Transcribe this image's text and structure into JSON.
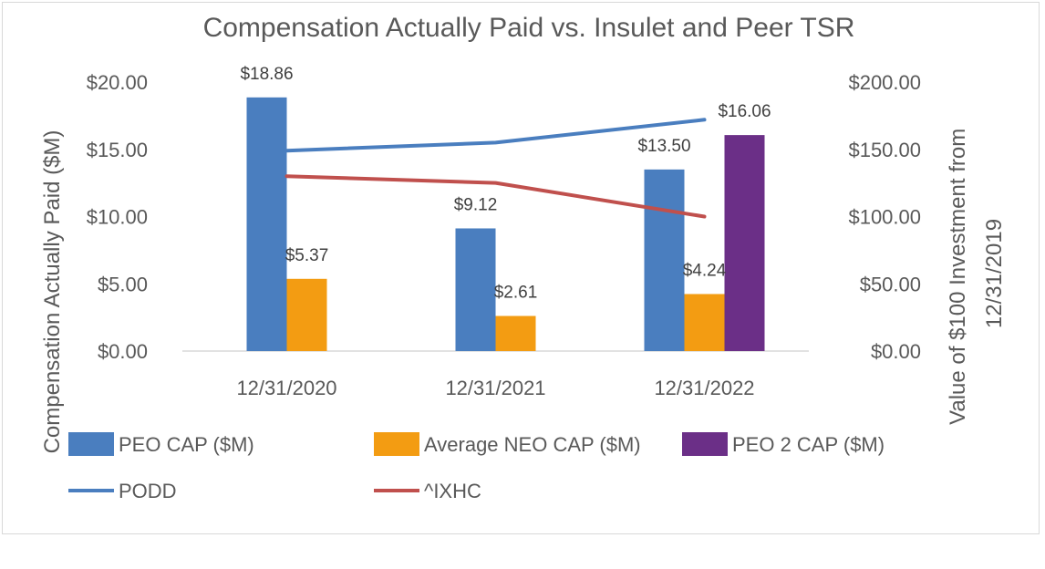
{
  "chart_data": {
    "type": "bar",
    "title": "Compensation Actually Paid vs. Insulet and Peer TSR",
    "categories": [
      "12/31/2020",
      "12/31/2021",
      "12/31/2022"
    ],
    "series": [
      {
        "name": "PEO CAP ($M)",
        "kind": "bar",
        "axis": "left",
        "color": "#4a7ebf",
        "values": [
          18.86,
          9.12,
          13.5
        ],
        "labels": [
          "$18.86",
          "$9.12",
          "$13.50"
        ]
      },
      {
        "name": "Average NEO CAP ($M)",
        "kind": "bar",
        "axis": "left",
        "color": "#f39c12",
        "values": [
          5.37,
          2.61,
          4.24
        ],
        "labels": [
          "$5.37",
          "$2.61",
          "$4.24"
        ]
      },
      {
        "name": "PEO 2 CAP ($M)",
        "kind": "bar",
        "axis": "left",
        "color": "#6b2f87",
        "values": [
          null,
          null,
          16.06
        ],
        "labels": [
          "",
          "",
          "$16.06"
        ]
      },
      {
        "name": "PODD",
        "kind": "line",
        "axis": "right",
        "color": "#4a7ebf",
        "values": [
          149,
          155,
          172
        ]
      },
      {
        "name": "^IXHC",
        "kind": "line",
        "axis": "right",
        "color": "#c0504d",
        "values": [
          130,
          125,
          100
        ]
      }
    ],
    "ylabel": "Compensation Actually Paid ($M)",
    "ylim": [
      0,
      20
    ],
    "yticks": [
      "$0.00",
      "$5.00",
      "$10.00",
      "$15.00",
      "$20.00"
    ],
    "y2label_lines": [
      "Value of $100 Investment from",
      "12/31/2019"
    ],
    "y2lim": [
      0,
      200
    ],
    "y2ticks": [
      "$0.00",
      "$50.00",
      "$100.00",
      "$150.00",
      "$200.00"
    ],
    "grid": false,
    "legend_position": "bottom"
  }
}
